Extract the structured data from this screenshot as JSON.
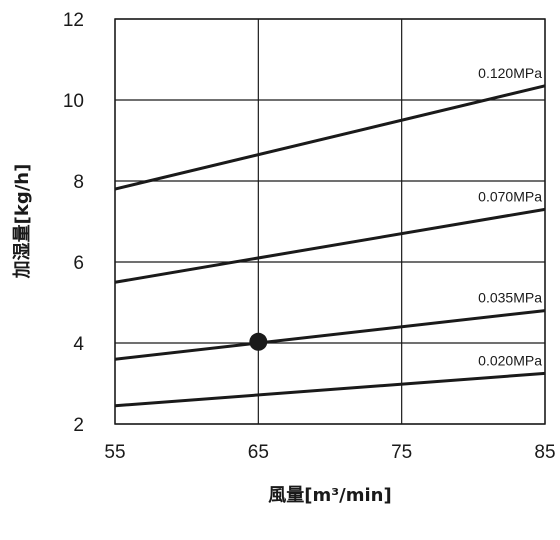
{
  "chart_data": {
    "type": "line",
    "xlabel": "風量[m³/min]",
    "ylabel": "加湿量[kg/h]",
    "xlim": [
      55,
      85
    ],
    "ylim": [
      2,
      12
    ],
    "xticks": [
      "55",
      "65",
      "75",
      "85"
    ],
    "yticks": [
      "2",
      "4",
      "6",
      "8",
      "10",
      "12"
    ],
    "grid": true,
    "line_color": "#1a1a1a",
    "series": [
      {
        "name": "0.120MPa",
        "x": [
          55,
          85
        ],
        "y": [
          7.8,
          10.35
        ]
      },
      {
        "name": "0.070MPa",
        "x": [
          55,
          85
        ],
        "y": [
          5.5,
          7.3
        ]
      },
      {
        "name": "0.035MPa",
        "x": [
          55,
          85
        ],
        "y": [
          3.6,
          4.8
        ]
      },
      {
        "name": "0.020MPa",
        "x": [
          55,
          85
        ],
        "y": [
          2.45,
          3.25
        ]
      }
    ],
    "highlight_point": {
      "x": 65,
      "y": 4.03
    }
  }
}
